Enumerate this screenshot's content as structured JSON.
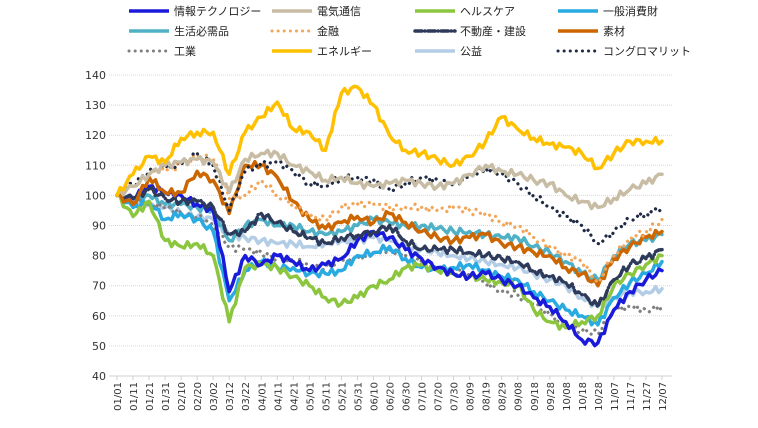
{
  "chart_data": {
    "type": "line",
    "title": "",
    "xlabel": "",
    "ylabel": "",
    "ylim": [
      40,
      140
    ],
    "yticks": [
      40,
      50,
      60,
      70,
      80,
      90,
      100,
      110,
      120,
      130,
      140
    ],
    "grid": true,
    "legend_position": "top",
    "x": [
      "01/01",
      "01/11",
      "01/21",
      "01/31",
      "02/10",
      "02/20",
      "03/02",
      "03/12",
      "03/22",
      "04/01",
      "04/11",
      "04/21",
      "05/01",
      "05/11",
      "05/21",
      "05/31",
      "06/10",
      "06/20",
      "06/30",
      "07/10",
      "07/20",
      "07/30",
      "08/09",
      "08/19",
      "08/29",
      "09/08",
      "09/18",
      "09/28",
      "10/08",
      "10/18",
      "10/28",
      "11/07",
      "11/17",
      "11/27",
      "12/07"
    ],
    "series": [
      {
        "name": "情報テクノロジー",
        "color": "#1a1adb",
        "style": "solid",
        "values": [
          100,
          99,
          103,
          101,
          100,
          97,
          95,
          68,
          80,
          77,
          80,
          78,
          75,
          77,
          79,
          85,
          88,
          86,
          82,
          79,
          76,
          74,
          73,
          74,
          72,
          70,
          66,
          63,
          58,
          52,
          51,
          62,
          68,
          72,
          75
        ]
      },
      {
        "name": "電気通信",
        "color": "#c8bda4",
        "style": "solid",
        "values": [
          100,
          103,
          107,
          110,
          111,
          112,
          111,
          101,
          112,
          114,
          114,
          110,
          108,
          105,
          106,
          104,
          103,
          104,
          105,
          104,
          103,
          104,
          107,
          110,
          108,
          107,
          105,
          104,
          100,
          98,
          96,
          99,
          102,
          104,
          107
        ]
      },
      {
        "name": "ヘルスケア",
        "color": "#8cc63f",
        "style": "solid",
        "values": [
          100,
          93,
          98,
          85,
          83,
          84,
          80,
          58,
          76,
          77,
          76,
          73,
          70,
          66,
          64,
          66,
          70,
          72,
          76,
          77,
          75,
          74,
          73,
          72,
          71,
          70,
          62,
          58,
          56,
          58,
          60,
          70,
          74,
          77,
          80
        ]
      },
      {
        "name": "一般消費財",
        "color": "#29abe2",
        "style": "solid",
        "values": [
          100,
          96,
          98,
          92,
          94,
          92,
          88,
          65,
          75,
          78,
          76,
          76,
          74,
          74,
          75,
          80,
          81,
          83,
          79,
          76,
          75,
          76,
          77,
          75,
          73,
          72,
          68,
          65,
          62,
          60,
          57,
          66,
          71,
          74,
          78
        ]
      },
      {
        "name": "生活必需品",
        "color": "#4fb0c6",
        "style": "solid",
        "values": [
          100,
          99,
          100,
          97,
          97,
          96,
          95,
          85,
          90,
          92,
          90,
          90,
          88,
          87,
          88,
          90,
          92,
          91,
          90,
          90,
          89,
          88,
          88,
          87,
          86,
          86,
          83,
          81,
          78,
          74,
          72,
          80,
          84,
          85,
          87
        ]
      },
      {
        "name": "金融",
        "color": "#f2a65a",
        "style": "dotted",
        "values": [
          100,
          104,
          108,
          108,
          110,
          113,
          112,
          99,
          100,
          105,
          100,
          97,
          93,
          92,
          96,
          97,
          97,
          96,
          96,
          96,
          95,
          96,
          95,
          94,
          91,
          90,
          86,
          83,
          80,
          78,
          71,
          80,
          86,
          88,
          92
        ]
      },
      {
        "name": "不動産・建設",
        "color": "#2d3a5a",
        "style": "dashed",
        "values": [
          100,
          99,
          102,
          99,
          98,
          98,
          96,
          87,
          88,
          94,
          91,
          88,
          86,
          84,
          86,
          87,
          88,
          90,
          85,
          82,
          82,
          82,
          81,
          80,
          79,
          78,
          75,
          73,
          71,
          67,
          63,
          72,
          77,
          79,
          82
        ]
      },
      {
        "name": "素材",
        "color": "#cc6600",
        "style": "solid",
        "values": [
          100,
          97,
          106,
          101,
          101,
          108,
          105,
          94,
          110,
          110,
          106,
          98,
          92,
          89,
          91,
          93,
          91,
          94,
          91,
          88,
          86,
          85,
          86,
          87,
          84,
          83,
          81,
          80,
          76,
          74,
          70,
          79,
          83,
          86,
          88
        ]
      },
      {
        "name": "工業",
        "color": "#808080",
        "style": "dotted",
        "values": [
          100,
          98,
          97,
          96,
          94,
          93,
          90,
          83,
          82,
          81,
          79,
          78,
          77,
          76,
          78,
          79,
          81,
          82,
          80,
          78,
          76,
          75,
          74,
          71,
          68,
          67,
          64,
          60,
          57,
          55,
          54,
          62,
          63,
          62,
          63
        ]
      },
      {
        "name": "エネルギー",
        "color": "#ffc000",
        "style": "solid",
        "values": [
          100,
          107,
          113,
          111,
          119,
          121,
          121,
          107,
          121,
          126,
          131,
          122,
          121,
          115,
          134,
          136,
          130,
          120,
          115,
          114,
          112,
          110,
          113,
          118,
          126,
          122,
          119,
          117,
          116,
          114,
          109,
          114,
          118,
          118,
          118
        ]
      },
      {
        "name": "公益",
        "color": "#b4cde6",
        "style": "solid",
        "values": [
          100,
          98,
          97,
          96,
          94,
          93,
          92,
          87,
          86,
          85,
          84,
          84,
          83,
          84,
          85,
          85,
          86,
          85,
          83,
          82,
          81,
          80,
          79,
          78,
          77,
          76,
          74,
          72,
          70,
          66,
          63,
          66,
          68,
          68,
          69
        ]
      },
      {
        "name": "コングロマリット",
        "color": "#1f2a44",
        "style": "dotted",
        "values": [
          100,
          104,
          108,
          109,
          110,
          114,
          110,
          95,
          108,
          110,
          111,
          108,
          104,
          103,
          106,
          106,
          105,
          102,
          104,
          106,
          105,
          104,
          106,
          109,
          107,
          104,
          100,
          96,
          93,
          90,
          84,
          88,
          92,
          94,
          96
        ]
      }
    ]
  }
}
